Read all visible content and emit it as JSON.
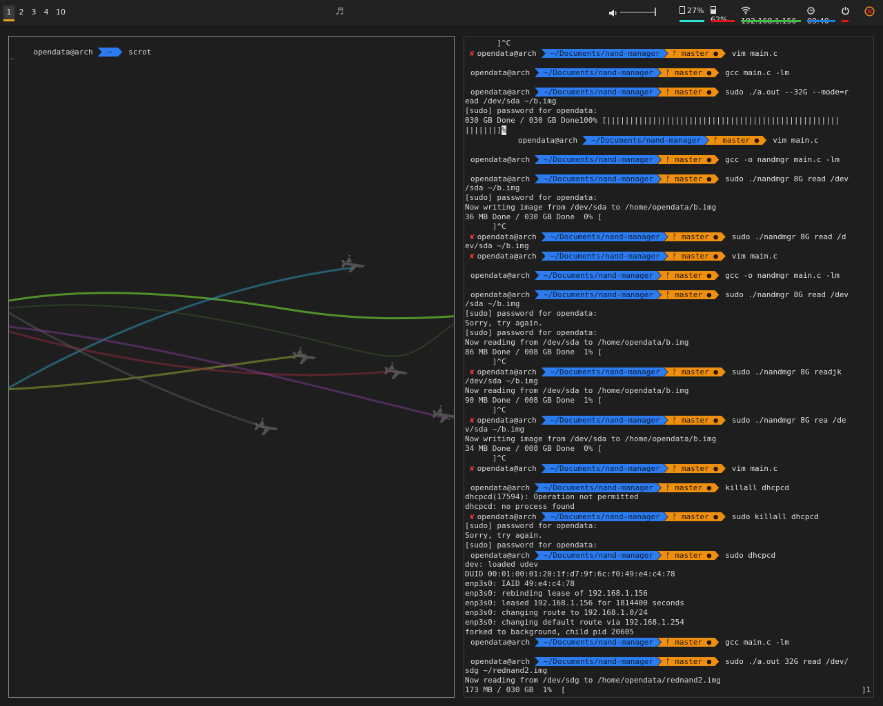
{
  "workspaces": [
    {
      "label": "1",
      "active": true
    },
    {
      "label": "2",
      "active": false
    },
    {
      "label": "3",
      "active": false
    },
    {
      "label": "4",
      "active": false
    },
    {
      "label": "10",
      "active": false
    }
  ],
  "tray": {
    "music_icon": "music-note-icon",
    "volume_icon": "speaker-icon",
    "volume_level": 0.95,
    "memory": "27%",
    "battery": "62%",
    "ip": "192.168.1.156",
    "clock": "09:40",
    "colors": {
      "memory": "#2ee6d6",
      "battery": "#e8151b",
      "ip": "#3fbf3f",
      "clock": "#1e7de6",
      "power": "#e8151b",
      "accent": "#e9a21b"
    }
  },
  "left_terminal": {
    "user": "opendata@arch",
    "dir": "~",
    "command": "scrot",
    "cursor": "_"
  },
  "right_terminal": {
    "lines": [
      {
        "t": "text",
        "s": "       ]^C"
      },
      {
        "t": "prompt",
        "err": true,
        "user": "opendata@arch",
        "dir": "~/Documents/nand-manager",
        "branch": "ᚠ master ●",
        "cmd": "vim main.c"
      },
      {
        "t": "blank"
      },
      {
        "t": "prompt",
        "err": false,
        "user": "opendata@arch",
        "dir": "~/Documents/nand-manager",
        "branch": "ᚠ master ●",
        "cmd": "gcc main.c -lm"
      },
      {
        "t": "blank"
      },
      {
        "t": "prompt",
        "err": false,
        "user": "opendata@arch",
        "dir": "~/Documents/nand-manager",
        "branch": "ᚠ master ●",
        "cmd": "sudo ./a.out --32G --mode=r"
      },
      {
        "t": "text",
        "s": "ead /dev/sda ~/b.img"
      },
      {
        "t": "text",
        "s": "[sudo] password for opendata:"
      },
      {
        "t": "text",
        "s": "030 GB Done / 030 GB Done100% [|||||||||||||||||||||||||||||||||||||||||||||||||||"
      },
      {
        "t": "text",
        "s": "|||||||]",
        "cur": "%"
      },
      {
        "t": "prompt",
        "indent": true,
        "err": false,
        "user": "opendata@arch",
        "dir": "~/Documents/nand-manager",
        "branch": "ᚠ master ●",
        "cmd": "vim main.c"
      },
      {
        "t": "blank"
      },
      {
        "t": "prompt",
        "err": false,
        "user": "opendata@arch",
        "dir": "~/Documents/nand-manager",
        "branch": "ᚠ master ●",
        "cmd": "gcc -o nandmgr main.c -lm"
      },
      {
        "t": "blank"
      },
      {
        "t": "prompt",
        "err": false,
        "user": "opendata@arch",
        "dir": "~/Documents/nand-manager",
        "branch": "ᚠ master ●",
        "cmd": "sudo ./nandmgr 8G read /dev"
      },
      {
        "t": "text",
        "s": "/sda ~/b.img"
      },
      {
        "t": "text",
        "s": "[sudo] password for opendata:"
      },
      {
        "t": "text",
        "s": "Now writing image from /dev/sda to /home/opendata/b.img"
      },
      {
        "t": "text",
        "s": "36 MB Done / 030 GB Done  0% ["
      },
      {
        "t": "text",
        "s": "      ]^C"
      },
      {
        "t": "prompt",
        "err": true,
        "user": "opendata@arch",
        "dir": "~/Documents/nand-manager",
        "branch": "ᚠ master ●",
        "cmd": "sudo ./nandmgr 8G read /d"
      },
      {
        "t": "text",
        "s": "ev/sda ~/b.img"
      },
      {
        "t": "prompt",
        "err": true,
        "user": "opendata@arch",
        "dir": "~/Documents/nand-manager",
        "branch": "ᚠ master ●",
        "cmd": "vim main.c"
      },
      {
        "t": "blank"
      },
      {
        "t": "prompt",
        "err": false,
        "user": "opendata@arch",
        "dir": "~/Documents/nand-manager",
        "branch": "ᚠ master ●",
        "cmd": "gcc -o nandmgr main.c -lm"
      },
      {
        "t": "blank"
      },
      {
        "t": "prompt",
        "err": false,
        "user": "opendata@arch",
        "dir": "~/Documents/nand-manager",
        "branch": "ᚠ master ●",
        "cmd": "sudo ./nandmgr 8G read /dev"
      },
      {
        "t": "text",
        "s": "/sda ~/b.img"
      },
      {
        "t": "text",
        "s": "[sudo] password for opendata:"
      },
      {
        "t": "text",
        "s": "Sorry, try again."
      },
      {
        "t": "text",
        "s": "[sudo] password for opendata:"
      },
      {
        "t": "text",
        "s": "Now reading from /dev/sda to /home/opendata/b.img"
      },
      {
        "t": "text",
        "s": "86 MB Done / 008 GB Done  1% ["
      },
      {
        "t": "text",
        "s": "      ]^C"
      },
      {
        "t": "prompt",
        "err": true,
        "user": "opendata@arch",
        "dir": "~/Documents/nand-manager",
        "branch": "ᚠ master ●",
        "cmd": "sudo ./nandmgr 8G readjk"
      },
      {
        "t": "text",
        "s": "/dev/sda ~/b.img"
      },
      {
        "t": "text",
        "s": "Now reading from /dev/sda to /home/opendata/b.img"
      },
      {
        "t": "text",
        "s": "90 MB Done / 008 GB Done  1% ["
      },
      {
        "t": "text",
        "s": "      ]^C"
      },
      {
        "t": "prompt",
        "err": true,
        "user": "opendata@arch",
        "dir": "~/Documents/nand-manager",
        "branch": "ᚠ master ●",
        "cmd": "sudo ./nandmgr 8G rea /de"
      },
      {
        "t": "text",
        "s": "v/sda ~/b.img"
      },
      {
        "t": "text",
        "s": "Now writing image from /dev/sda to /home/opendata/b.img"
      },
      {
        "t": "text",
        "s": "34 MB Done / 008 GB Done  0% ["
      },
      {
        "t": "text",
        "s": "      ]^C"
      },
      {
        "t": "prompt",
        "err": true,
        "user": "opendata@arch",
        "dir": "~/Documents/nand-manager",
        "branch": "ᚠ master ●",
        "cmd": "vim main.c"
      },
      {
        "t": "blank"
      },
      {
        "t": "prompt",
        "err": false,
        "user": "opendata@arch",
        "dir": "~/Documents/nand-manager",
        "branch": "ᚠ master ●",
        "cmd": "killall dhcpcd"
      },
      {
        "t": "text",
        "s": "dhcpcd(17594): Operation not permitted"
      },
      {
        "t": "text",
        "s": "dhcpcd: no process found"
      },
      {
        "t": "prompt",
        "err": true,
        "user": "opendata@arch",
        "dir": "~/Documents/nand-manager",
        "branch": "ᚠ master ●",
        "cmd": "sudo killall dhcpcd"
      },
      {
        "t": "text",
        "s": "[sudo] password for opendata:"
      },
      {
        "t": "text",
        "s": "Sorry, try again."
      },
      {
        "t": "text",
        "s": "[sudo] password for opendata:"
      },
      {
        "t": "prompt",
        "err": false,
        "user": "opendata@arch",
        "dir": "~/Documents/nand-manager",
        "branch": "ᚠ master ●",
        "cmd": "sudo dhcpcd"
      },
      {
        "t": "text",
        "s": "dev: loaded udev"
      },
      {
        "t": "text",
        "s": "DUID 00:01:00:01:20:1f:d7:9f:6c:f0:49:e4:c4:78"
      },
      {
        "t": "text",
        "s": "enp3s0: IAID 49:e4:c4:78"
      },
      {
        "t": "text",
        "s": "enp3s0: rebinding lease of 192.168.1.156"
      },
      {
        "t": "text",
        "s": "enp3s0: leased 192.168.1.156 for 1814400 seconds"
      },
      {
        "t": "text",
        "s": "enp3s0: changing route to 192.168.1.0/24"
      },
      {
        "t": "text",
        "s": "enp3s0: changing default route via 192.168.1.254"
      },
      {
        "t": "text",
        "s": "forked to background, child pid 20605"
      },
      {
        "t": "prompt",
        "err": false,
        "user": "opendata@arch",
        "dir": "~/Documents/nand-manager",
        "branch": "ᚠ master ●",
        "cmd": "gcc main.c -lm"
      },
      {
        "t": "blank"
      },
      {
        "t": "prompt",
        "err": false,
        "user": "opendata@arch",
        "dir": "~/Documents/nand-manager",
        "branch": "ᚠ master ●",
        "cmd": "sudo ./a.out 32G read /dev/"
      },
      {
        "t": "text",
        "s": "sdg ~/rednand2.img"
      },
      {
        "t": "text",
        "s": "Now reading from /dev/sdg to /home/opendata/rednand2.img"
      },
      {
        "t": "text",
        "s": "173 MB / 030 GB  1%  [",
        "tail": "]1"
      }
    ]
  }
}
